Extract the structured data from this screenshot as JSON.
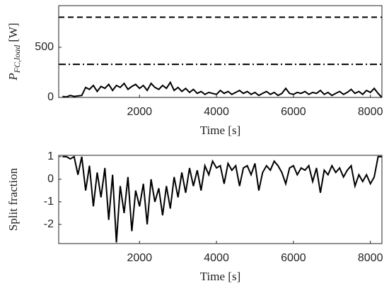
{
  "chart_data": [
    {
      "type": "line",
      "xlabel": "Time [s]",
      "ylabel": {
        "main": "P",
        "sub": "FC,load",
        "unit": "[W]"
      },
      "xlim": [
        -100,
        8300
      ],
      "xticks": [
        2000,
        4000,
        6000,
        8000
      ],
      "ylim": [
        0,
        915
      ],
      "yticks": [
        0,
        500
      ],
      "hlines": [
        {
          "value": 800,
          "style": "dashed"
        },
        {
          "value": 330,
          "style": "dashdot"
        }
      ],
      "x": [
        0,
        100,
        200,
        300,
        400,
        500,
        600,
        700,
        800,
        900,
        1000,
        1100,
        1200,
        1300,
        1400,
        1500,
        1600,
        1700,
        1800,
        1900,
        2000,
        2100,
        2200,
        2300,
        2400,
        2500,
        2600,
        2700,
        2800,
        2900,
        3000,
        3100,
        3200,
        3300,
        3400,
        3500,
        3600,
        3700,
        3800,
        3900,
        4000,
        4100,
        4200,
        4300,
        4400,
        4500,
        4600,
        4700,
        4800,
        4900,
        5000,
        5100,
        5200,
        5300,
        5400,
        5500,
        5600,
        5700,
        5800,
        5900,
        6000,
        6100,
        6200,
        6300,
        6400,
        6500,
        6600,
        6700,
        6800,
        6900,
        7000,
        7100,
        7200,
        7300,
        7400,
        7500,
        7600,
        7700,
        7800,
        7900,
        8000,
        8100,
        8200,
        8300
      ],
      "series": [
        {
          "color": "#000000",
          "values": [
            10,
            5,
            20,
            10,
            15,
            20,
            100,
            80,
            120,
            60,
            110,
            90,
            130,
            70,
            120,
            100,
            140,
            80,
            110,
            130,
            90,
            120,
            70,
            140,
            100,
            80,
            120,
            90,
            150,
            70,
            100,
            60,
            90,
            50,
            80,
            40,
            60,
            30,
            50,
            40,
            30,
            70,
            40,
            60,
            30,
            50,
            70,
            40,
            60,
            30,
            50,
            20,
            40,
            60,
            30,
            50,
            20,
            40,
            90,
            40,
            30,
            50,
            40,
            60,
            30,
            50,
            40,
            70,
            30,
            50,
            20,
            40,
            60,
            30,
            50,
            80,
            40,
            60,
            30,
            70,
            50,
            90,
            40,
            0
          ]
        }
      ]
    },
    {
      "type": "line",
      "xlabel": "Time [s]",
      "ylabel": {
        "main": "Split fraction"
      },
      "xlim": [
        -100,
        8300
      ],
      "xticks": [
        2000,
        4000,
        6000,
        8000
      ],
      "ylim": [
        -2.85,
        1.06
      ],
      "yticks": [
        -2,
        -1,
        0,
        1
      ],
      "x": [
        0,
        100,
        200,
        300,
        400,
        500,
        600,
        700,
        800,
        900,
        1000,
        1100,
        1200,
        1300,
        1400,
        1500,
        1600,
        1700,
        1800,
        1900,
        2000,
        2100,
        2200,
        2300,
        2400,
        2500,
        2600,
        2700,
        2800,
        2900,
        3000,
        3100,
        3200,
        3300,
        3400,
        3500,
        3600,
        3700,
        3800,
        3900,
        4000,
        4100,
        4200,
        4300,
        4400,
        4500,
        4600,
        4700,
        4800,
        4900,
        5000,
        5100,
        5200,
        5300,
        5400,
        5500,
        5600,
        5700,
        5800,
        5900,
        6000,
        6100,
        6200,
        6300,
        6400,
        6500,
        6600,
        6700,
        6800,
        6900,
        7000,
        7100,
        7200,
        7300,
        7400,
        7500,
        7600,
        7700,
        7800,
        7900,
        8000,
        8100,
        8200,
        8300
      ],
      "series": [
        {
          "color": "#000000",
          "values": [
            1,
            1,
            0.9,
            1,
            0.2,
            1,
            -0.5,
            0.6,
            -1.2,
            0.3,
            -0.8,
            0.5,
            -1.8,
            0.2,
            -2.8,
            -0.3,
            -1.5,
            0.1,
            -2.3,
            -0.5,
            -1.2,
            -0.2,
            -2.0,
            0,
            -1.0,
            -0.4,
            -1.6,
            -0.3,
            -1.3,
            0.1,
            -0.8,
            0.3,
            -0.6,
            0.5,
            -0.3,
            0.4,
            -0.5,
            0.6,
            0.2,
            0.8,
            0.5,
            0.6,
            -0.2,
            0.7,
            0.4,
            0.6,
            -0.3,
            0.5,
            0.6,
            0.2,
            0.7,
            -0.5,
            0.3,
            0.6,
            0.4,
            0.8,
            0.6,
            0.3,
            -0.2,
            0.5,
            0.6,
            0.2,
            0.5,
            0.4,
            0.6,
            -0.1,
            0.5,
            -0.6,
            0.4,
            0.2,
            0.6,
            0.3,
            0.5,
            0.1,
            0.4,
            0.6,
            -0.3,
            0.2,
            -0.1,
            0.2,
            -0.2,
            0.1,
            1,
            1
          ]
        }
      ]
    }
  ]
}
